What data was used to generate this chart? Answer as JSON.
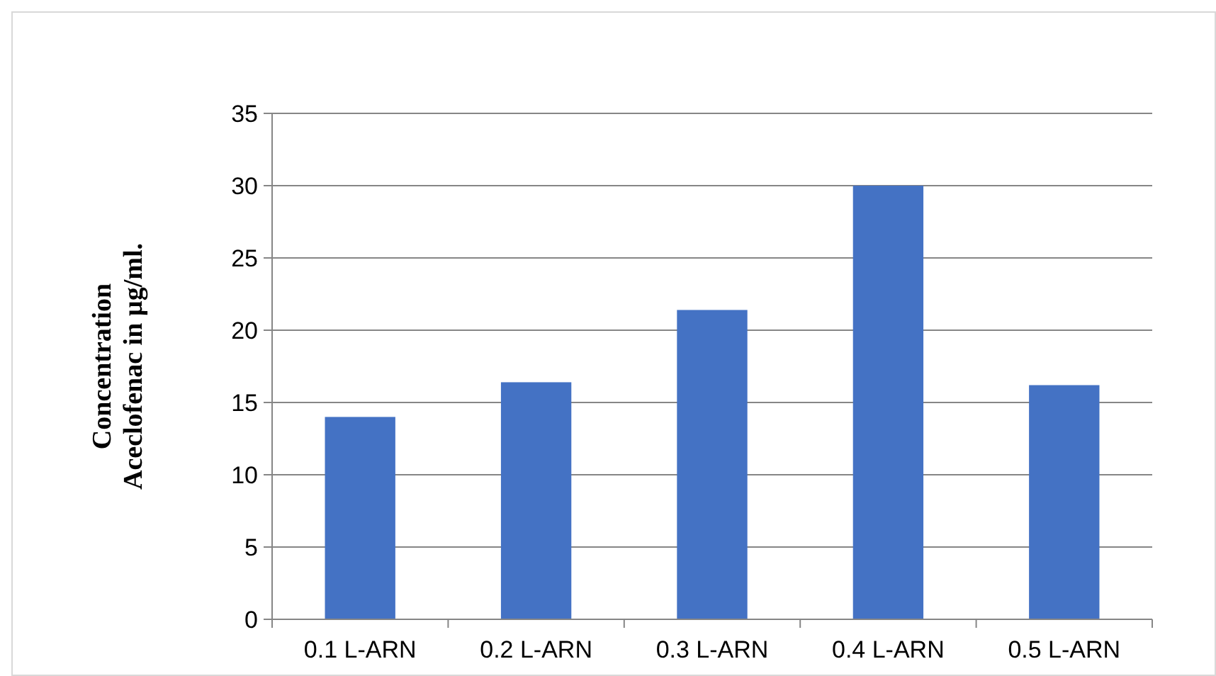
{
  "chart_data": {
    "type": "bar",
    "ylabel": "Concentration\nAceclofenac in µg/ml.",
    "categories": [
      "0.1 L-ARN",
      "0.2 L-ARN",
      "0.3 L-ARN",
      "0.4 L-ARN",
      "0.5 L-ARN"
    ],
    "values": [
      14.0,
      16.4,
      21.4,
      30.0,
      16.2
    ],
    "color": "#4472c4",
    "ylim": [
      0,
      35
    ],
    "yticks": [
      0,
      5,
      10,
      15,
      20,
      25,
      30,
      35
    ],
    "grid": "y"
  }
}
